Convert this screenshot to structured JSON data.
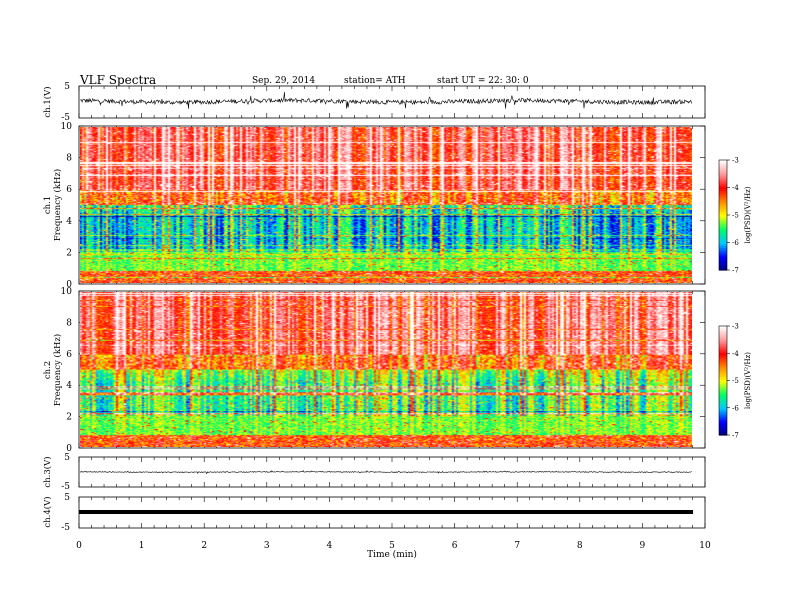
{
  "header": {
    "title": "VLF  Spectra",
    "date": "Sep. 29, 2014",
    "station": "station= ATH",
    "start": "start  UT  =   22: 30: 0"
  },
  "chart_data": [
    {
      "type": "line",
      "name": "ch1-waveform",
      "ylabel": "ch.1(V)",
      "ylim": [
        -5,
        5
      ],
      "yticks": [
        "5",
        "-5"
      ],
      "xlim": [
        0,
        10
      ],
      "data_end_min": 9.8,
      "description_values": {
        "mean_v": 0.2,
        "noise_amplitude_v": 1.5
      }
    },
    {
      "type": "heatmap",
      "name": "ch1-spectrogram",
      "ylabel": "ch.1\nFrequency  (kHz)",
      "ylim": [
        0,
        10
      ],
      "yticks": [
        "0",
        "2",
        "4",
        "6",
        "8",
        "10"
      ],
      "xlim": [
        0,
        10
      ],
      "colorbar": {
        "label": "log(PSD)(V²/Hz)",
        "range": [
          -7,
          -3
        ],
        "ticks": [
          "-3",
          "-4",
          "-5",
          "-6",
          "-7"
        ]
      }
    },
    {
      "type": "heatmap",
      "name": "ch2-spectrogram",
      "ylabel": "ch.2\nFrequency  (kHz)",
      "ylim": [
        0,
        10
      ],
      "yticks": [
        "0",
        "2",
        "4",
        "6",
        "8",
        "10"
      ],
      "xlim": [
        0,
        10
      ],
      "colorbar": {
        "label": "log(PSD)(V²/Hz)",
        "range": [
          -7,
          -3
        ],
        "ticks": [
          "-3",
          "-4",
          "-5",
          "-6",
          "-7"
        ]
      }
    },
    {
      "type": "line",
      "name": "ch3-waveform",
      "ylabel": "ch.3(V)",
      "ylim": [
        -5,
        5
      ],
      "yticks": [
        "5",
        "-5"
      ],
      "xlim": [
        0,
        10
      ],
      "description_values": {
        "mean_v": 0.0
      }
    },
    {
      "type": "line",
      "name": "ch4-waveform",
      "ylabel": "ch.4(V)",
      "ylim": [
        -5,
        5
      ],
      "yticks": [
        "5",
        "-5"
      ],
      "xlim": [
        0,
        10
      ],
      "description_values": {
        "mean_v": 0.0
      }
    }
  ],
  "xaxis": {
    "label": "Time  (min)",
    "ticks": [
      "0",
      "1",
      "2",
      "3",
      "4",
      "5",
      "6",
      "7",
      "8",
      "9",
      "10"
    ]
  },
  "colors": {
    "waveform": "#000000",
    "cmap": [
      "#00007a",
      "#0000ff",
      "#00c8ff",
      "#00ff66",
      "#ffff00",
      "#ff8c00",
      "#ff0000",
      "#ff9a9a",
      "#ffffff"
    ]
  }
}
